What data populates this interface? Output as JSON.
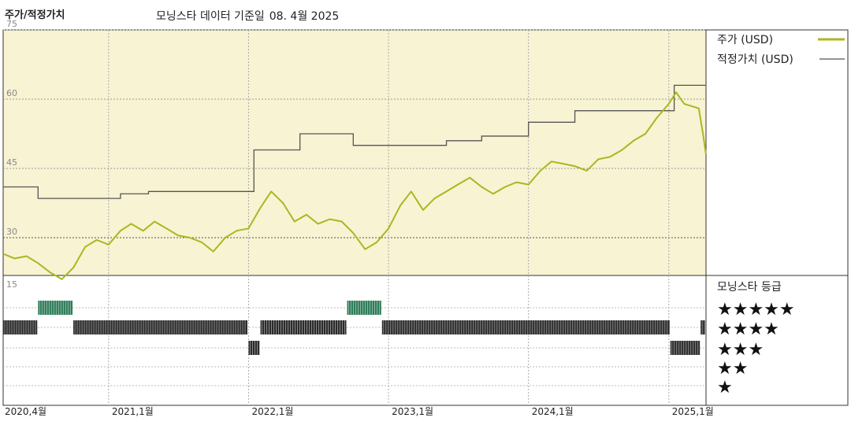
{
  "header": {
    "title": "주가/적정가치",
    "source": "모닝스타 데이터 기준일",
    "date": "08. 4월 2025"
  },
  "legend": {
    "price_label": "주가 (USD)",
    "fair_value_label": "적정가치 (USD)",
    "rating_title": "모닝스타 등급",
    "price_color": "#a8b820",
    "fair_value_color": "#555555",
    "rating_color": "#2b2b2b",
    "rating_highlight_color": "#2f7d5a"
  },
  "chart_data": {
    "type": "line",
    "title": "주가/적정가치",
    "x_range": [
      "2020-04-01",
      "2025-04-08"
    ],
    "x_ticks": [
      {
        "date": "2020-04-01",
        "label": "2020,4월"
      },
      {
        "date": "2021-01-01",
        "label": "2021,1월"
      },
      {
        "date": "2022-01-01",
        "label": "2022,1월"
      },
      {
        "date": "2023-01-01",
        "label": "2023,1월"
      },
      {
        "date": "2024-01-01",
        "label": "2024,1월"
      },
      {
        "date": "2025-01-01",
        "label": "2025,1월"
      }
    ],
    "y_ticks": [
      75,
      60,
      45,
      30
    ],
    "ylim": [
      15,
      75
    ],
    "rating_axis_label": "15",
    "series": [
      {
        "name": "주가 (USD)",
        "points": [
          [
            "2020-04-01",
            26.5
          ],
          [
            "2020-05-01",
            25.5
          ],
          [
            "2020-06-01",
            26.0
          ],
          [
            "2020-07-01",
            24.5
          ],
          [
            "2020-08-01",
            22.5
          ],
          [
            "2020-09-01",
            21.0
          ],
          [
            "2020-10-01",
            23.5
          ],
          [
            "2020-11-01",
            28.0
          ],
          [
            "2020-12-01",
            29.5
          ],
          [
            "2021-01-01",
            28.5
          ],
          [
            "2021-02-01",
            31.5
          ],
          [
            "2021-03-01",
            33.0
          ],
          [
            "2021-04-01",
            31.5
          ],
          [
            "2021-05-01",
            33.5
          ],
          [
            "2021-06-01",
            32.0
          ],
          [
            "2021-07-01",
            30.5
          ],
          [
            "2021-08-01",
            30.0
          ],
          [
            "2021-09-01",
            29.0
          ],
          [
            "2021-10-01",
            27.0
          ],
          [
            "2021-11-01",
            30.0
          ],
          [
            "2021-12-01",
            31.5
          ],
          [
            "2022-01-01",
            32.0
          ],
          [
            "2022-02-01",
            36.5
          ],
          [
            "2022-03-01",
            40.0
          ],
          [
            "2022-04-01",
            37.5
          ],
          [
            "2022-05-01",
            33.5
          ],
          [
            "2022-06-01",
            35.0
          ],
          [
            "2022-07-01",
            33.0
          ],
          [
            "2022-08-01",
            34.0
          ],
          [
            "2022-09-01",
            33.5
          ],
          [
            "2022-10-01",
            31.0
          ],
          [
            "2022-11-01",
            27.5
          ],
          [
            "2022-12-01",
            29.0
          ],
          [
            "2023-01-01",
            32.0
          ],
          [
            "2023-02-01",
            37.0
          ],
          [
            "2023-03-01",
            40.0
          ],
          [
            "2023-04-01",
            36.0
          ],
          [
            "2023-05-01",
            38.5
          ],
          [
            "2023-06-01",
            40.0
          ],
          [
            "2023-07-01",
            41.5
          ],
          [
            "2023-08-01",
            43.0
          ],
          [
            "2023-09-01",
            41.0
          ],
          [
            "2023-10-01",
            39.5
          ],
          [
            "2023-11-01",
            41.0
          ],
          [
            "2023-12-01",
            42.0
          ],
          [
            "2024-01-01",
            41.5
          ],
          [
            "2024-02-01",
            44.5
          ],
          [
            "2024-03-01",
            46.5
          ],
          [
            "2024-04-01",
            46.0
          ],
          [
            "2024-05-01",
            45.5
          ],
          [
            "2024-06-01",
            44.5
          ],
          [
            "2024-07-01",
            47.0
          ],
          [
            "2024-08-01",
            47.5
          ],
          [
            "2024-09-01",
            49.0
          ],
          [
            "2024-10-01",
            51.0
          ],
          [
            "2024-11-01",
            52.5
          ],
          [
            "2024-12-01",
            56.0
          ],
          [
            "2025-01-01",
            59.0
          ],
          [
            "2025-01-20",
            61.5
          ],
          [
            "2025-02-10",
            59.0
          ],
          [
            "2025-03-01",
            58.5
          ],
          [
            "2025-03-20",
            58.0
          ],
          [
            "2025-04-01",
            52.0
          ],
          [
            "2025-04-08",
            48.0
          ]
        ]
      },
      {
        "name": "적정가치 (USD)",
        "steps": [
          [
            "2020-04-01",
            41.0
          ],
          [
            "2020-07-01",
            38.5
          ],
          [
            "2021-02-01",
            39.5
          ],
          [
            "2021-04-15",
            40.0
          ],
          [
            "2022-01-15",
            49.0
          ],
          [
            "2022-05-15",
            52.5
          ],
          [
            "2022-10-01",
            50.0
          ],
          [
            "2023-06-01",
            51.0
          ],
          [
            "2023-09-01",
            52.0
          ],
          [
            "2024-01-01",
            55.0
          ],
          [
            "2024-05-01",
            57.5
          ],
          [
            "2025-01-15",
            63.0
          ],
          [
            "2025-04-08",
            63.0
          ]
        ]
      }
    ],
    "star_rating": {
      "levels": [
        "★★★★★",
        "★★★★",
        "★★★",
        "★★",
        "★"
      ],
      "periods": [
        {
          "start": "2020-04-01",
          "end": "2020-07-01",
          "stars": 4
        },
        {
          "start": "2020-07-01",
          "end": "2020-10-01",
          "stars": 5
        },
        {
          "start": "2020-10-01",
          "end": "2021-12-31",
          "stars": 4
        },
        {
          "start": "2022-01-01",
          "end": "2022-02-01",
          "stars": 3
        },
        {
          "start": "2022-02-01",
          "end": "2022-09-15",
          "stars": 4
        },
        {
          "start": "2022-09-15",
          "end": "2022-12-15",
          "stars": 5
        },
        {
          "start": "2022-12-15",
          "end": "2025-01-05",
          "stars": 4
        },
        {
          "start": "2025-01-05",
          "end": "2025-03-25",
          "stars": 3
        },
        {
          "start": "2025-03-25",
          "end": "2025-04-08",
          "stars": 4
        }
      ]
    }
  }
}
